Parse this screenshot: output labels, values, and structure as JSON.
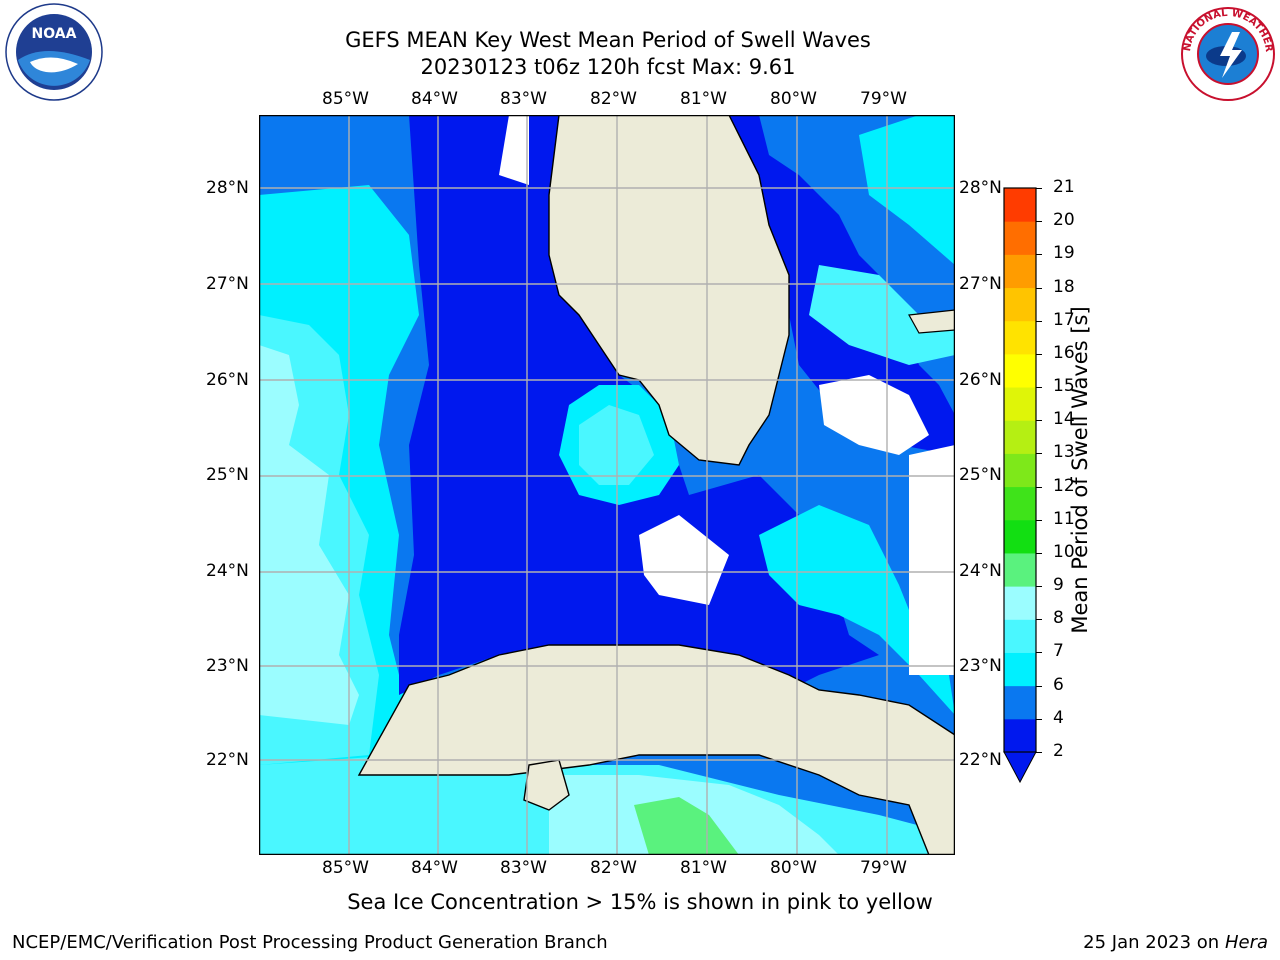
{
  "title": {
    "line1": "GEFS MEAN Key West Mean Period of Swell Waves",
    "line2": "20230123 t06z 120h fcst   Max: 9.61"
  },
  "logos": {
    "noaa_text": "NOAA",
    "nws_text": "NATIONAL WEATHER SERVICE"
  },
  "map": {
    "lon_labels": [
      "85°W",
      "84°W",
      "83°W",
      "82°W",
      "81°W",
      "80°W",
      "79°W"
    ],
    "lat_labels": [
      "28°N",
      "27°N",
      "26°N",
      "25°N",
      "24°N",
      "23°N",
      "22°N"
    ],
    "field": "Mean Period of Swell Waves",
    "max_value": 9.61,
    "colors": {
      "land": "#ecebd8",
      "grid": "#b0b0b0",
      "p2_4": "#0018ee",
      "p4_6": "#0a78f0",
      "p6_7": "#00f0ff",
      "p7_8": "#4af7ff",
      "p8_9": "#9bfdff",
      "p9_10": "#5af27e"
    }
  },
  "colorbar": {
    "label": "Mean Period of Swell Waves [s]",
    "ticks": [
      "2",
      "4",
      "6",
      "7",
      "8",
      "9",
      "10",
      "11",
      "12",
      "13",
      "14",
      "15",
      "16",
      "17",
      "18",
      "19",
      "20",
      "21"
    ],
    "colors": [
      "#0018ee",
      "#0a78f0",
      "#00f0ff",
      "#4af7ff",
      "#9bfdff",
      "#5af27e",
      "#12df12",
      "#3fe31a",
      "#7ee81a",
      "#b5ef13",
      "#dff508",
      "#ffff00",
      "#ffe300",
      "#ffc400",
      "#ff9c00",
      "#ff6e00",
      "#ff3c00",
      "#ff0000"
    ]
  },
  "note": "Sea Ice Concentration > 15% is shown in pink to yellow",
  "footer": {
    "left": "NCEP/EMC/Verification Post Processing Product Generation Branch",
    "right_date": "25 Jan 2023 on ",
    "right_host": "Hera"
  }
}
